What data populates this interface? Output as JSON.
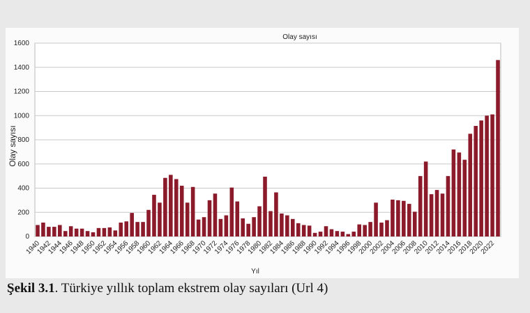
{
  "chart_data": {
    "type": "bar",
    "title": "Olay sayısı",
    "x_label": "Yıl",
    "y_label": "Olay sayısı",
    "categories": [
      "1940",
      null,
      "1942",
      null,
      "1944",
      null,
      "1946",
      null,
      "1948",
      null,
      "1950",
      null,
      "1952",
      null,
      "1954",
      null,
      "1956",
      null,
      "1958",
      null,
      "1960",
      null,
      "1962",
      null,
      "1964",
      null,
      "1966",
      null,
      "1968",
      null,
      "1970",
      null,
      "1972",
      null,
      "1974",
      null,
      "1976",
      null,
      "1978",
      null,
      "1980",
      null,
      "1982",
      null,
      "1984",
      null,
      "1986",
      null,
      "1988",
      null,
      "1990",
      null,
      "1992",
      null,
      "1994",
      null,
      "1996",
      null,
      "1998",
      null,
      "2000",
      null,
      "2002",
      null,
      "2004",
      null,
      "2006",
      null,
      "2008",
      null,
      "2010",
      null,
      "2012",
      null,
      "2014",
      null,
      "2016",
      null,
      "2018",
      null,
      "2020",
      null,
      "2022",
      null
    ],
    "values": [
      95,
      115,
      80,
      80,
      95,
      45,
      85,
      65,
      65,
      45,
      35,
      70,
      70,
      75,
      50,
      115,
      125,
      195,
      120,
      120,
      220,
      345,
      280,
      485,
      510,
      475,
      420,
      280,
      410,
      140,
      160,
      300,
      355,
      145,
      175,
      405,
      290,
      150,
      105,
      160,
      250,
      495,
      210,
      365,
      190,
      175,
      145,
      110,
      95,
      90,
      30,
      40,
      85,
      60,
      45,
      40,
      20,
      40,
      100,
      95,
      120,
      280,
      115,
      135,
      305,
      300,
      295,
      270,
      205,
      500,
      620,
      350,
      385,
      355,
      500,
      720,
      695,
      635,
      850,
      915,
      960,
      1000,
      1010,
      1460
    ],
    "color": "#8b1a2a",
    "ylim": [
      0,
      1600
    ],
    "yticks": [
      0,
      200,
      400,
      600,
      800,
      1000,
      1200,
      1400,
      1600
    ],
    "grid": true
  },
  "caption": {
    "label": "Şekil 3.1",
    "text": ". Türkiye yıllık toplam ekstrem olay sayıları (Url 4)"
  }
}
